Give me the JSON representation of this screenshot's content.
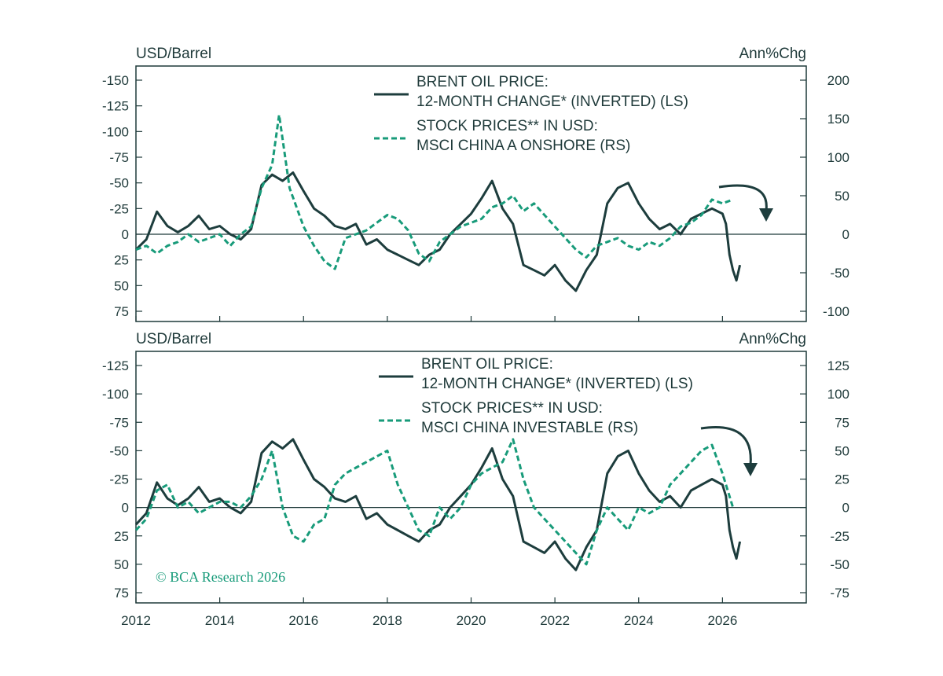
{
  "colors": {
    "oil": "#1d3d3d",
    "stocks": "#189b7a",
    "axis": "#1f3a3a",
    "arrow": "#1d3d3d"
  },
  "credit": "© BCA Research 2026",
  "chart_data": [
    {
      "type": "line",
      "left_axis_label": "USD/Barrel",
      "right_axis_label": "Ann%Chg",
      "x_range": [
        "2012-01",
        "2027-12"
      ],
      "x_ticks": [
        "2012",
        "2014",
        "2016",
        "2018",
        "2020",
        "2022",
        "2024",
        "2026"
      ],
      "left_ticks": [
        -150,
        -125,
        -100,
        -75,
        -50,
        -25,
        0,
        25,
        50,
        75
      ],
      "left_tick_labels": [
        "-150",
        "-125",
        "-100",
        "-75",
        "-50",
        "-25",
        "0",
        "25",
        "50",
        "75"
      ],
      "left_ylim": [
        -150,
        75
      ],
      "left_inverted": true,
      "right_ticks": [
        200,
        150,
        100,
        50,
        0,
        -50,
        -100
      ],
      "right_tick_labels": [
        "200",
        "150",
        "100",
        "50",
        "0",
        "-50",
        "-100"
      ],
      "right_ylim": [
        -100,
        200
      ],
      "legend": [
        {
          "series": "oil",
          "lines": [
            "BRENT OIL PRICE:",
            "12-MONTH CHANGE* (INVERTED) (LS)"
          ]
        },
        {
          "series": "stocks",
          "lines": [
            "STOCK PRICES** IN USD:",
            "MSCI CHINA A ONSHORE (RS)"
          ]
        }
      ],
      "series": [
        {
          "key": "oil",
          "axis": "left",
          "style": "solid",
          "x": [
            "2012-01",
            "2012-04",
            "2012-07",
            "2012-10",
            "2013-01",
            "2013-04",
            "2013-07",
            "2013-10",
            "2014-01",
            "2014-04",
            "2014-07",
            "2014-10",
            "2015-01",
            "2015-04",
            "2015-07",
            "2015-10",
            "2016-01",
            "2016-04",
            "2016-07",
            "2016-10",
            "2017-01",
            "2017-04",
            "2017-07",
            "2017-10",
            "2018-01",
            "2018-04",
            "2018-07",
            "2018-10",
            "2019-01",
            "2019-04",
            "2019-07",
            "2019-10",
            "2020-01",
            "2020-04",
            "2020-07",
            "2020-10",
            "2021-01",
            "2021-04",
            "2021-07",
            "2021-10",
            "2022-01",
            "2022-04",
            "2022-07",
            "2022-10",
            "2023-01",
            "2023-04",
            "2023-07",
            "2023-10",
            "2024-01",
            "2024-04",
            "2024-07",
            "2024-10",
            "2025-01",
            "2025-04",
            "2025-07",
            "2025-10",
            "2026-01",
            "2026-02",
            "2026-03",
            "2026-04",
            "2026-05",
            "2026-06"
          ],
          "values": [
            15,
            5,
            -22,
            -8,
            -2,
            -8,
            -18,
            -5,
            -8,
            0,
            5,
            -5,
            -48,
            -58,
            -52,
            -60,
            -42,
            -25,
            -18,
            -8,
            -5,
            -10,
            10,
            5,
            15,
            20,
            25,
            30,
            20,
            15,
            0,
            -10,
            -20,
            -35,
            -52,
            -25,
            -10,
            30,
            35,
            40,
            30,
            45,
            55,
            35,
            20,
            -30,
            -45,
            -50,
            -30,
            -15,
            -5,
            -10,
            0,
            -15,
            -20,
            -25,
            -20,
            -10,
            20,
            35,
            45,
            30
          ]
        },
        {
          "key": "stocks",
          "axis": "right",
          "style": "dashed",
          "x": [
            "2012-01",
            "2012-04",
            "2012-07",
            "2012-10",
            "2013-01",
            "2013-04",
            "2013-07",
            "2013-10",
            "2014-01",
            "2014-04",
            "2014-07",
            "2014-10",
            "2015-01",
            "2015-04",
            "2015-06",
            "2015-09",
            "2016-01",
            "2016-04",
            "2016-07",
            "2016-10",
            "2017-01",
            "2017-04",
            "2017-07",
            "2017-10",
            "2018-01",
            "2018-04",
            "2018-07",
            "2018-10",
            "2019-01",
            "2019-04",
            "2019-07",
            "2019-10",
            "2020-01",
            "2020-04",
            "2020-07",
            "2020-10",
            "2021-01",
            "2021-04",
            "2021-07",
            "2021-10",
            "2022-01",
            "2022-04",
            "2022-07",
            "2022-10",
            "2023-01",
            "2023-04",
            "2023-07",
            "2023-10",
            "2024-01",
            "2024-04",
            "2024-07",
            "2024-10",
            "2025-01",
            "2025-04",
            "2025-07",
            "2025-10",
            "2026-01",
            "2026-04"
          ],
          "values": [
            -20,
            -15,
            -25,
            -15,
            -10,
            0,
            -10,
            -5,
            0,
            -15,
            0,
            10,
            60,
            90,
            155,
            60,
            10,
            -15,
            -35,
            -45,
            -5,
            0,
            5,
            15,
            25,
            20,
            5,
            -25,
            -35,
            -10,
            0,
            10,
            15,
            20,
            35,
            40,
            50,
            30,
            40,
            25,
            10,
            -5,
            -20,
            -30,
            -15,
            -10,
            -5,
            -15,
            -20,
            -10,
            -15,
            -5,
            10,
            15,
            25,
            45,
            40,
            45
          ]
        }
      ]
    },
    {
      "type": "line",
      "left_axis_label": "USD/Barrel",
      "right_axis_label": "Ann%Chg",
      "x_range": [
        "2012-01",
        "2027-12"
      ],
      "x_ticks": [
        "2012",
        "2014",
        "2016",
        "2018",
        "2020",
        "2022",
        "2024",
        "2026"
      ],
      "left_ticks": [
        -125,
        -100,
        -75,
        -50,
        -25,
        0,
        25,
        50,
        75
      ],
      "left_tick_labels": [
        "-125",
        "-100",
        "-75",
        "-50",
        "-25",
        "0",
        "25",
        "50",
        "75"
      ],
      "left_ylim": [
        -125,
        75
      ],
      "left_inverted": true,
      "right_ticks": [
        125,
        100,
        75,
        50,
        25,
        0,
        -25,
        -50,
        -75
      ],
      "right_tick_labels": [
        "125",
        "100",
        "75",
        "50",
        "25",
        "0",
        "-25",
        "-50",
        "-75"
      ],
      "right_ylim": [
        -75,
        125
      ],
      "legend": [
        {
          "series": "oil",
          "lines": [
            "BRENT OIL PRICE:",
            "12-MONTH CHANGE* (INVERTED) (LS)"
          ]
        },
        {
          "series": "stocks",
          "lines": [
            "STOCK PRICES** IN USD:",
            "MSCI CHINA INVESTABLE (RS)"
          ]
        }
      ],
      "series": [
        {
          "key": "oil",
          "axis": "left",
          "style": "solid",
          "x": [
            "2012-01",
            "2012-04",
            "2012-07",
            "2012-10",
            "2013-01",
            "2013-04",
            "2013-07",
            "2013-10",
            "2014-01",
            "2014-04",
            "2014-07",
            "2014-10",
            "2015-01",
            "2015-04",
            "2015-07",
            "2015-10",
            "2016-01",
            "2016-04",
            "2016-07",
            "2016-10",
            "2017-01",
            "2017-04",
            "2017-07",
            "2017-10",
            "2018-01",
            "2018-04",
            "2018-07",
            "2018-10",
            "2019-01",
            "2019-04",
            "2019-07",
            "2019-10",
            "2020-01",
            "2020-04",
            "2020-07",
            "2020-10",
            "2021-01",
            "2021-04",
            "2021-07",
            "2021-10",
            "2022-01",
            "2022-04",
            "2022-07",
            "2022-10",
            "2023-01",
            "2023-04",
            "2023-07",
            "2023-10",
            "2024-01",
            "2024-04",
            "2024-07",
            "2024-10",
            "2025-01",
            "2025-04",
            "2025-07",
            "2025-10",
            "2026-01",
            "2026-02",
            "2026-03",
            "2026-04",
            "2026-05",
            "2026-06"
          ],
          "values": [
            15,
            5,
            -22,
            -8,
            -2,
            -8,
            -18,
            -5,
            -8,
            0,
            5,
            -5,
            -48,
            -58,
            -52,
            -60,
            -42,
            -25,
            -18,
            -8,
            -5,
            -10,
            10,
            5,
            15,
            20,
            25,
            30,
            20,
            15,
            0,
            -10,
            -20,
            -35,
            -52,
            -25,
            -10,
            30,
            35,
            40,
            30,
            45,
            55,
            35,
            20,
            -30,
            -45,
            -50,
            -30,
            -15,
            -5,
            -10,
            0,
            -15,
            -20,
            -25,
            -20,
            -10,
            20,
            35,
            45,
            30
          ]
        },
        {
          "key": "stocks",
          "axis": "right",
          "style": "dashed",
          "x": [
            "2012-01",
            "2012-04",
            "2012-07",
            "2012-10",
            "2013-01",
            "2013-04",
            "2013-07",
            "2013-10",
            "2014-01",
            "2014-04",
            "2014-07",
            "2014-10",
            "2015-01",
            "2015-04",
            "2015-07",
            "2015-10",
            "2016-01",
            "2016-04",
            "2016-07",
            "2016-10",
            "2017-01",
            "2017-04",
            "2017-07",
            "2017-10",
            "2018-01",
            "2018-04",
            "2018-07",
            "2018-10",
            "2019-01",
            "2019-04",
            "2019-07",
            "2019-10",
            "2020-01",
            "2020-04",
            "2020-07",
            "2020-10",
            "2021-01",
            "2021-04",
            "2021-07",
            "2021-10",
            "2022-01",
            "2022-04",
            "2022-07",
            "2022-10",
            "2023-01",
            "2023-04",
            "2023-07",
            "2023-10",
            "2024-01",
            "2024-04",
            "2024-07",
            "2024-10",
            "2025-01",
            "2025-04",
            "2025-07",
            "2025-10",
            "2026-01",
            "2026-04"
          ],
          "values": [
            -20,
            -10,
            15,
            20,
            0,
            5,
            -5,
            0,
            5,
            5,
            0,
            10,
            25,
            50,
            0,
            -25,
            -30,
            -15,
            -10,
            20,
            30,
            35,
            40,
            45,
            50,
            20,
            0,
            -20,
            -25,
            0,
            -10,
            0,
            20,
            30,
            35,
            40,
            60,
            25,
            0,
            -10,
            -20,
            -30,
            -40,
            -50,
            -20,
            0,
            -10,
            -20,
            0,
            -5,
            0,
            20,
            30,
            40,
            50,
            55,
            30,
            0
          ]
        }
      ]
    }
  ]
}
